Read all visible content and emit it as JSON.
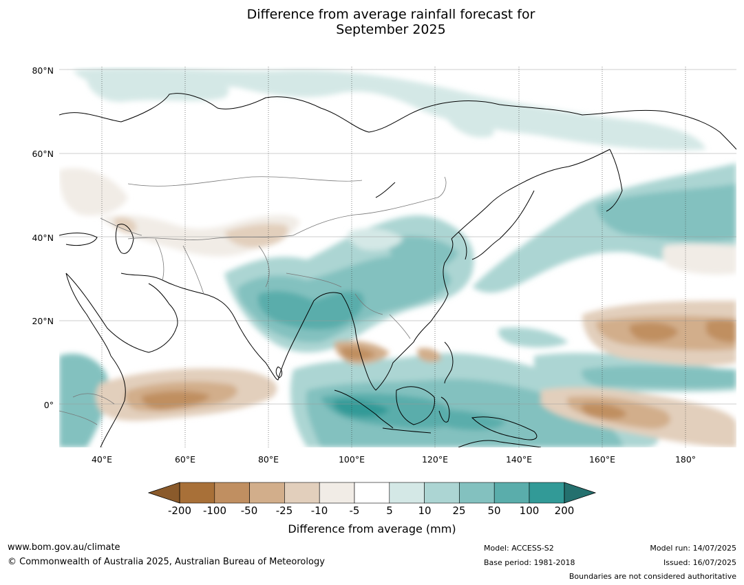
{
  "title_line1": "Difference from average rainfall forecast for",
  "title_line2": "September 2025",
  "lat_labels": [
    "80°N",
    "60°N",
    "40°N",
    "20°N",
    "0°"
  ],
  "lon_labels": [
    "40°E",
    "60°E",
    "80°E",
    "100°E",
    "120°E",
    "140°E",
    "160°E",
    "180°"
  ],
  "colorbar": {
    "title": "Difference from average (mm)",
    "ticks": [
      "-200",
      "-100",
      "-50",
      "-25",
      "-10",
      "-5",
      "5",
      "10",
      "25",
      "50",
      "100",
      "200"
    ],
    "colors": [
      "#a87038",
      "#c08f61",
      "#d2ae8b",
      "#e2cfbc",
      "#f1ece6",
      "#ffffff",
      "#d4e8e6",
      "#acd5d3",
      "#83c1bf",
      "#5aadab",
      "#329a97"
    ],
    "under_color": "#8a5a2b",
    "over_color": "#24706e"
  },
  "footer": {
    "website": "www.bom.gov.au/climate",
    "copyright": "© Commonwealth of Australia 2025, Australian Bureau of Meteorology",
    "model": "Model: ACCESS-S2",
    "base_period": "Base period: 1981-2018",
    "model_run": "Model run: 14/07/2025",
    "issued": "Issued: 16/07/2025",
    "boundaries": "Boundaries are not considered authoritative"
  }
}
